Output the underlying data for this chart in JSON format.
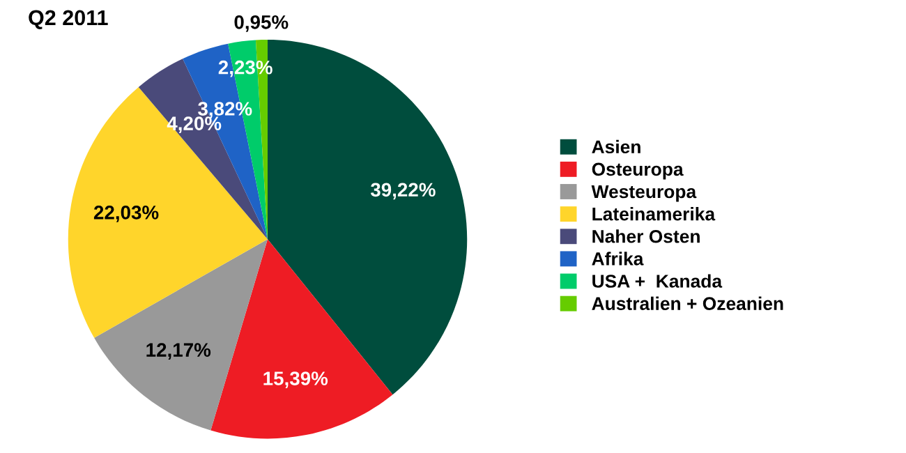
{
  "chart_data": {
    "type": "pie",
    "title": "Q2 2011",
    "categories": [
      "Asien",
      "Osteuropa",
      "Westeuropa",
      "Lateinamerika",
      "Naher Osten",
      "Afrika",
      "USA +  Kanada",
      "Australien + Ozeanien"
    ],
    "values": [
      39.22,
      15.39,
      12.17,
      22.03,
      4.2,
      3.82,
      2.23,
      0.95
    ],
    "value_labels": [
      "39,22%",
      "15,39%",
      "12,17%",
      "22,03%",
      "4,20%",
      "3,82%",
      "2,23%",
      "0,95%"
    ],
    "colors": [
      "#004d3d",
      "#ee1c24",
      "#999999",
      "#ffd52b",
      "#4a4a7a",
      "#1f63c6",
      "#00cc6a",
      "#66cc00"
    ],
    "legend": "right"
  }
}
